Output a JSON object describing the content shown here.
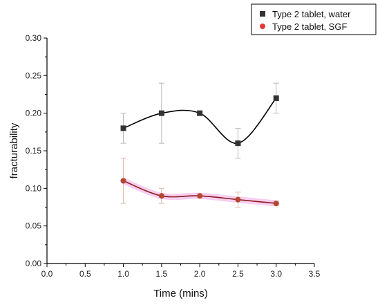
{
  "chart_data": {
    "type": "scatter",
    "title": "",
    "xlabel": "Time (mins)",
    "ylabel": "fracturability",
    "xlim": [
      0.0,
      3.5
    ],
    "ylim": [
      0.0,
      0.3
    ],
    "xticks": [
      "0.0",
      "0.5",
      "1.0",
      "1.5",
      "2.0",
      "2.5",
      "3.0",
      "3.5"
    ],
    "yticks": [
      "0.00",
      "0.05",
      "0.10",
      "0.15",
      "0.20",
      "0.25",
      "0.30"
    ],
    "grid": false,
    "legend_position": "top-right",
    "series": [
      {
        "name": "Type 2 tablet, water",
        "marker": "square",
        "color": "#333333",
        "line_color": "#000000",
        "x": [
          1.0,
          1.5,
          2.0,
          2.5,
          3.0
        ],
        "y": [
          0.18,
          0.2,
          0.2,
          0.16,
          0.22
        ],
        "err": [
          0.02,
          0.04,
          0.003,
          0.02,
          0.02
        ]
      },
      {
        "name": "Type 2 tablet, SGF",
        "marker": "circle",
        "color": "#e03a3a",
        "line_color": "#8b1a1a",
        "x": [
          1.0,
          1.5,
          2.0,
          2.5,
          3.0
        ],
        "y": [
          0.11,
          0.09,
          0.09,
          0.085,
          0.08
        ],
        "err": [
          0.03,
          0.01,
          0.003,
          0.01,
          0.003
        ]
      }
    ]
  }
}
